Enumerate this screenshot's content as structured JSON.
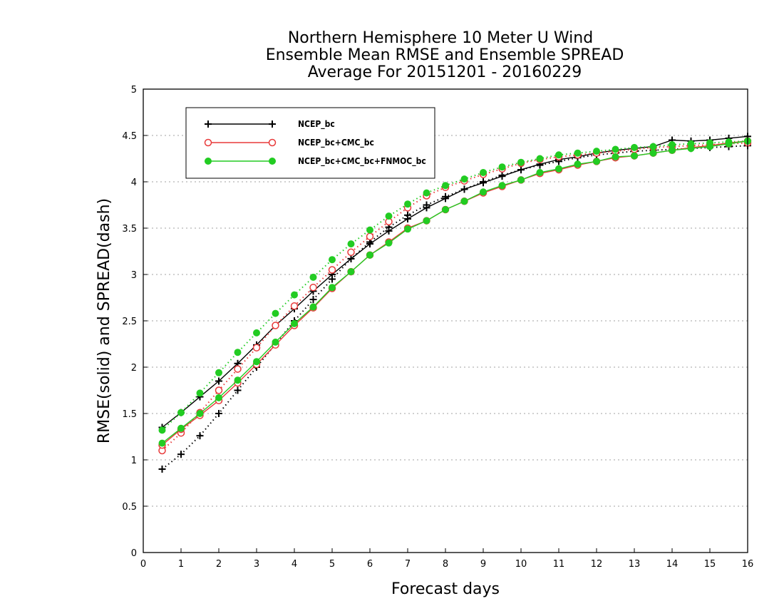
{
  "chart_data": {
    "type": "line",
    "title_lines": [
      "Northern Hemisphere 10 Meter U Wind",
      "Ensemble Mean RMSE and Ensemble SPREAD",
      "Average For 20151201 - 20160229"
    ],
    "xlabel": "Forecast days",
    "ylabel": "RMSE(solid) and SPREAD(dash)",
    "xlim": [
      0,
      16
    ],
    "ylim": [
      0,
      5
    ],
    "xticks": [
      0,
      1,
      2,
      3,
      4,
      5,
      6,
      7,
      8,
      9,
      10,
      11,
      12,
      13,
      14,
      15,
      16
    ],
    "yticks": [
      0,
      0.5,
      1,
      1.5,
      2,
      2.5,
      3,
      3.5,
      4,
      4.5,
      5
    ],
    "ytick_labels": [
      "0",
      "0.5",
      "1",
      "1.5",
      "2",
      "2.5",
      "3",
      "3.5",
      "4",
      "4.5",
      "5"
    ],
    "grid": true,
    "legend_position": "top-left",
    "x": [
      0.5,
      1,
      1.5,
      2,
      2.5,
      3,
      3.5,
      4,
      4.5,
      5,
      5.5,
      6,
      6.5,
      7,
      7.5,
      8,
      8.5,
      9,
      9.5,
      10,
      10.5,
      11,
      11.5,
      12,
      12.5,
      13,
      13.5,
      14,
      14.5,
      15,
      15.5,
      16
    ],
    "series": [
      {
        "name": "NCEP_bc",
        "color": "#000000",
        "marker": "plus",
        "rmse": [
          1.35,
          1.51,
          1.68,
          1.85,
          2.04,
          2.24,
          2.45,
          2.63,
          2.82,
          3.0,
          3.17,
          3.33,
          3.47,
          3.6,
          3.72,
          3.82,
          3.92,
          3.99,
          4.06,
          4.13,
          4.19,
          4.24,
          4.27,
          4.31,
          4.34,
          4.36,
          4.38,
          4.45,
          4.44,
          4.45,
          4.47,
          4.49
        ],
        "spread": [
          0.9,
          1.06,
          1.26,
          1.5,
          1.75,
          2.0,
          2.25,
          2.5,
          2.73,
          2.95,
          3.17,
          3.35,
          3.51,
          3.64,
          3.75,
          3.84,
          3.92,
          4.0,
          4.07,
          4.13,
          4.18,
          4.22,
          4.26,
          4.29,
          4.31,
          4.33,
          4.34,
          4.35,
          4.36,
          4.37,
          4.38,
          4.39
        ]
      },
      {
        "name": "NCEP_bc+CMC_bc",
        "color": "#e83a3a",
        "marker": "open-circle",
        "rmse": [
          1.16,
          1.33,
          1.48,
          1.64,
          1.83,
          2.03,
          2.24,
          2.45,
          2.64,
          2.85,
          3.03,
          3.21,
          3.35,
          3.5,
          3.58,
          3.7,
          3.79,
          3.88,
          3.95,
          4.02,
          4.09,
          4.13,
          4.18,
          4.22,
          4.26,
          4.28,
          4.31,
          4.34,
          4.37,
          4.39,
          4.42,
          4.44
        ],
        "spread": [
          1.1,
          1.29,
          1.51,
          1.75,
          1.98,
          2.21,
          2.45,
          2.66,
          2.86,
          3.05,
          3.24,
          3.41,
          3.57,
          3.72,
          3.85,
          3.94,
          4.01,
          4.08,
          4.14,
          4.2,
          4.24,
          4.27,
          4.29,
          4.31,
          4.33,
          4.35,
          4.37,
          4.38,
          4.39,
          4.4,
          4.41,
          4.42
        ]
      },
      {
        "name": "NCEP_bc+CMC_bc+FNMOC_bc",
        "color": "#22cc22",
        "marker": "filled-circle",
        "rmse": [
          1.18,
          1.34,
          1.5,
          1.67,
          1.86,
          2.06,
          2.27,
          2.47,
          2.65,
          2.86,
          3.03,
          3.21,
          3.34,
          3.49,
          3.58,
          3.7,
          3.79,
          3.89,
          3.96,
          4.02,
          4.1,
          4.14,
          4.19,
          4.22,
          4.27,
          4.28,
          4.31,
          4.34,
          4.36,
          4.38,
          4.41,
          4.44
        ],
        "spread": [
          1.32,
          1.51,
          1.72,
          1.94,
          2.16,
          2.37,
          2.58,
          2.78,
          2.97,
          3.16,
          3.33,
          3.48,
          3.63,
          3.76,
          3.88,
          3.96,
          4.03,
          4.1,
          4.16,
          4.21,
          4.25,
          4.29,
          4.31,
          4.33,
          4.35,
          4.37,
          4.38,
          4.4,
          4.41,
          4.42,
          4.43,
          4.44
        ]
      }
    ]
  }
}
